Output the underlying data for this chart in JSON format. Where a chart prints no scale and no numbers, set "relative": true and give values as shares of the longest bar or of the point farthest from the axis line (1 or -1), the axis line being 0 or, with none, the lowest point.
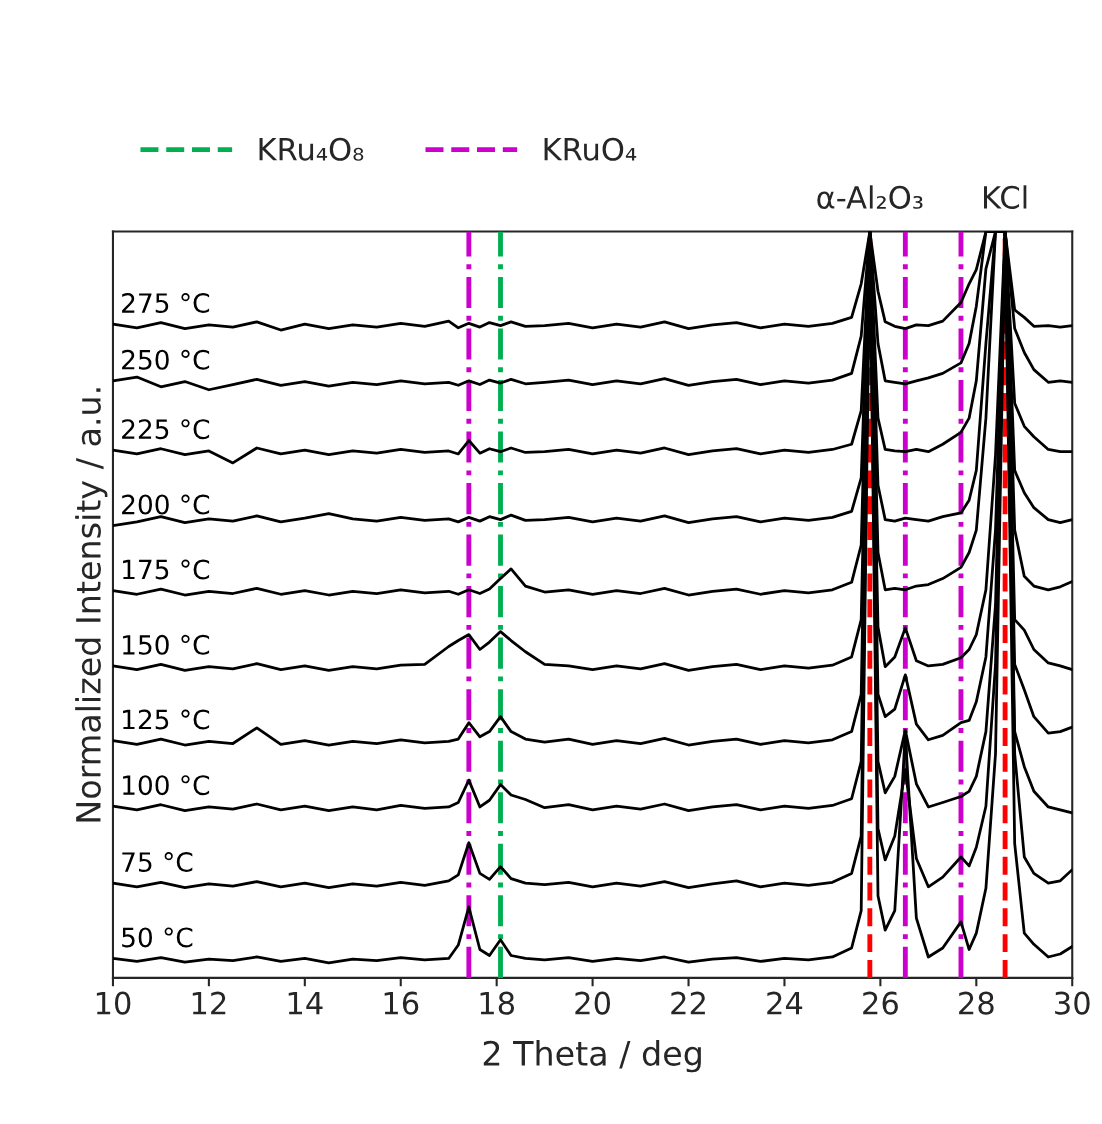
{
  "chart_data": {
    "type": "line",
    "relative": true,
    "xlabel": "2 Theta / deg",
    "ylabel": "Normalized Intensity / a.u.",
    "xlim": [
      10,
      30
    ],
    "xticks": [
      10,
      12,
      14,
      16,
      18,
      20,
      22,
      24,
      26,
      28,
      30
    ],
    "grid": false,
    "legend": "top",
    "marker": "none",
    "line_style": "solid",
    "x": [
      10,
      10.5,
      11,
      11.5,
      12,
      12.5,
      13,
      13.5,
      14,
      14.5,
      15,
      15.5,
      16,
      16.5,
      17,
      17.2,
      17.42,
      17.65,
      17.85,
      18.08,
      18.3,
      18.6,
      19,
      19.5,
      20,
      20.5,
      21,
      21.5,
      22,
      22.5,
      23,
      23.5,
      24,
      24.5,
      25,
      25.4,
      25.6,
      25.78,
      25.95,
      26.1,
      26.3,
      26.52,
      26.75,
      27,
      27.3,
      27.68,
      27.85,
      28.0,
      28.2,
      28.4,
      28.6,
      28.8,
      29.0,
      29.2,
      29.5,
      29.75,
      30
    ],
    "series": [
      {
        "name": "50 °C",
        "color": "#000000",
        "values": [
          0.026,
          0.022,
          0.027,
          0.021,
          0.025,
          0.023,
          0.028,
          0.022,
          0.026,
          0.02,
          0.025,
          0.023,
          0.027,
          0.024,
          0.026,
          0.044,
          0.095,
          0.038,
          0.03,
          0.051,
          0.03,
          0.026,
          0.024,
          0.027,
          0.022,
          0.026,
          0.023,
          0.028,
          0.021,
          0.025,
          0.027,
          0.022,
          0.026,
          0.024,
          0.028,
          0.04,
          0.09,
          1.0,
          0.11,
          0.064,
          0.09,
          0.326,
          0.08,
          0.028,
          0.04,
          0.075,
          0.038,
          0.06,
          0.12,
          0.3,
          1.0,
          0.18,
          0.06,
          0.045,
          0.028,
          0.032,
          0.042
        ]
      },
      {
        "name": "75 °C",
        "color": "#000000",
        "values": [
          0.127,
          0.122,
          0.128,
          0.121,
          0.126,
          0.123,
          0.129,
          0.122,
          0.127,
          0.121,
          0.126,
          0.123,
          0.128,
          0.124,
          0.13,
          0.138,
          0.181,
          0.14,
          0.132,
          0.149,
          0.133,
          0.127,
          0.125,
          0.128,
          0.122,
          0.127,
          0.123,
          0.129,
          0.121,
          0.126,
          0.13,
          0.122,
          0.127,
          0.124,
          0.128,
          0.14,
          0.19,
          1.0,
          0.2,
          0.158,
          0.19,
          0.279,
          0.16,
          0.122,
          0.135,
          0.162,
          0.15,
          0.175,
          0.23,
          0.42,
          1.0,
          0.3,
          0.162,
          0.14,
          0.127,
          0.13,
          0.145
        ]
      },
      {
        "name": "100 °C",
        "color": "#000000",
        "values": [
          0.23,
          0.225,
          0.232,
          0.224,
          0.229,
          0.226,
          0.233,
          0.225,
          0.23,
          0.224,
          0.229,
          0.225,
          0.231,
          0.227,
          0.229,
          0.235,
          0.265,
          0.229,
          0.238,
          0.259,
          0.245,
          0.239,
          0.228,
          0.232,
          0.225,
          0.23,
          0.226,
          0.233,
          0.224,
          0.229,
          0.232,
          0.225,
          0.23,
          0.227,
          0.231,
          0.24,
          0.29,
          1.0,
          0.29,
          0.248,
          0.27,
          0.332,
          0.26,
          0.229,
          0.235,
          0.243,
          0.25,
          0.27,
          0.33,
          0.5,
          1.0,
          0.33,
          0.283,
          0.25,
          0.229,
          0.225,
          0.221
        ]
      },
      {
        "name": "125 °C",
        "color": "#000000",
        "values": [
          0.318,
          0.313,
          0.32,
          0.312,
          0.317,
          0.314,
          0.335,
          0.313,
          0.318,
          0.312,
          0.317,
          0.314,
          0.319,
          0.315,
          0.317,
          0.32,
          0.342,
          0.323,
          0.33,
          0.35,
          0.33,
          0.32,
          0.316,
          0.32,
          0.313,
          0.318,
          0.314,
          0.321,
          0.312,
          0.317,
          0.32,
          0.313,
          0.318,
          0.315,
          0.319,
          0.33,
          0.38,
          1.0,
          0.38,
          0.35,
          0.36,
          0.406,
          0.34,
          0.319,
          0.325,
          0.342,
          0.345,
          0.37,
          0.43,
          0.6,
          1.0,
          0.42,
          0.386,
          0.35,
          0.328,
          0.33,
          0.336
        ]
      },
      {
        "name": "150 °C",
        "color": "#000000",
        "values": [
          0.418,
          0.413,
          0.42,
          0.412,
          0.417,
          0.414,
          0.421,
          0.413,
          0.418,
          0.412,
          0.417,
          0.414,
          0.419,
          0.42,
          0.444,
          0.452,
          0.46,
          0.44,
          0.45,
          0.464,
          0.452,
          0.437,
          0.42,
          0.418,
          0.413,
          0.418,
          0.414,
          0.421,
          0.412,
          0.417,
          0.42,
          0.413,
          0.418,
          0.415,
          0.419,
          0.43,
          0.48,
          1.0,
          0.47,
          0.417,
          0.43,
          0.469,
          0.425,
          0.418,
          0.42,
          0.429,
          0.44,
          0.46,
          0.52,
          0.7,
          1.0,
          0.48,
          0.466,
          0.44,
          0.422,
          0.418,
          0.413
        ]
      },
      {
        "name": "175 °C",
        "color": "#000000",
        "values": [
          0.519,
          0.514,
          0.521,
          0.513,
          0.518,
          0.515,
          0.522,
          0.514,
          0.519,
          0.513,
          0.518,
          0.515,
          0.52,
          0.516,
          0.518,
          0.514,
          0.52,
          0.515,
          0.521,
          0.535,
          0.548,
          0.525,
          0.517,
          0.52,
          0.514,
          0.519,
          0.515,
          0.522,
          0.513,
          0.518,
          0.521,
          0.514,
          0.519,
          0.516,
          0.52,
          0.53,
          0.58,
          1.0,
          0.57,
          0.52,
          0.522,
          0.52,
          0.525,
          0.527,
          0.535,
          0.55,
          0.57,
          0.6,
          0.75,
          1.0,
          1.0,
          0.6,
          0.538,
          0.525,
          0.52,
          0.524,
          0.531
        ]
      },
      {
        "name": "200 °C",
        "color": "#000000",
        "values": [
          0.606,
          0.611,
          0.618,
          0.61,
          0.615,
          0.612,
          0.619,
          0.611,
          0.616,
          0.622,
          0.615,
          0.612,
          0.617,
          0.613,
          0.615,
          0.611,
          0.617,
          0.612,
          0.618,
          0.614,
          0.62,
          0.613,
          0.614,
          0.617,
          0.611,
          0.616,
          0.612,
          0.619,
          0.61,
          0.615,
          0.618,
          0.611,
          0.616,
          0.613,
          0.617,
          0.625,
          0.67,
          1.0,
          0.66,
          0.614,
          0.612,
          0.616,
          0.614,
          0.612,
          0.618,
          0.623,
          0.64,
          0.68,
          0.85,
          1.0,
          1.0,
          0.68,
          0.65,
          0.63,
          0.614,
          0.61,
          0.614
        ]
      },
      {
        "name": "225 °C",
        "color": "#000000",
        "values": [
          0.707,
          0.702,
          0.709,
          0.701,
          0.706,
          0.69,
          0.71,
          0.702,
          0.707,
          0.701,
          0.706,
          0.703,
          0.708,
          0.704,
          0.706,
          0.702,
          0.72,
          0.703,
          0.709,
          0.705,
          0.71,
          0.704,
          0.705,
          0.708,
          0.702,
          0.707,
          0.703,
          0.71,
          0.701,
          0.706,
          0.709,
          0.702,
          0.707,
          0.704,
          0.708,
          0.715,
          0.76,
          1.0,
          0.75,
          0.708,
          0.706,
          0.705,
          0.708,
          0.705,
          0.715,
          0.731,
          0.75,
          0.8,
          0.95,
          1.0,
          1.0,
          0.77,
          0.739,
          0.725,
          0.708,
          0.705,
          0.705
        ]
      },
      {
        "name": "250 °C",
        "color": "#000000",
        "values": [
          0.8,
          0.805,
          0.792,
          0.799,
          0.788,
          0.795,
          0.802,
          0.794,
          0.799,
          0.793,
          0.798,
          0.795,
          0.8,
          0.796,
          0.798,
          0.794,
          0.8,
          0.795,
          0.801,
          0.797,
          0.802,
          0.796,
          0.798,
          0.801,
          0.795,
          0.8,
          0.796,
          0.803,
          0.794,
          0.799,
          0.802,
          0.795,
          0.8,
          0.797,
          0.801,
          0.81,
          0.86,
          1.0,
          0.85,
          0.8,
          0.798,
          0.796,
          0.8,
          0.804,
          0.81,
          0.824,
          0.85,
          0.9,
          1.0,
          1.0,
          1.0,
          0.87,
          0.838,
          0.815,
          0.798,
          0.8,
          0.798
        ]
      },
      {
        "name": "275 °C",
        "color": "#000000",
        "values": [
          0.876,
          0.871,
          0.878,
          0.87,
          0.875,
          0.872,
          0.879,
          0.868,
          0.876,
          0.87,
          0.875,
          0.872,
          0.877,
          0.873,
          0.88,
          0.871,
          0.877,
          0.872,
          0.878,
          0.874,
          0.879,
          0.873,
          0.874,
          0.877,
          0.871,
          0.876,
          0.872,
          0.879,
          0.87,
          0.875,
          0.878,
          0.871,
          0.876,
          0.873,
          0.877,
          0.885,
          0.93,
          1.0,
          0.92,
          0.879,
          0.873,
          0.87,
          0.875,
          0.874,
          0.88,
          0.905,
          0.93,
          0.949,
          1.0,
          1.0,
          1.0,
          0.895,
          0.885,
          0.873,
          0.874,
          0.872,
          0.874
        ]
      }
    ],
    "ref_lines": [
      {
        "axis": "x",
        "value": 18.08,
        "label": "KRu₄O₈",
        "color": "#00b050",
        "line_style": "dashdot"
      },
      {
        "axis": "x",
        "value": 17.42,
        "label": "KRuO₄",
        "color": "#cc00cc",
        "line_style": "dashdot"
      },
      {
        "axis": "x",
        "value": 25.78,
        "label": "α-Al₂O₃",
        "color": "#ff0000",
        "line_style": "dashed"
      },
      {
        "axis": "x",
        "value": 26.52,
        "color": "#cc00cc",
        "line_style": "dashdot"
      },
      {
        "axis": "x",
        "value": 27.68,
        "color": "#cc00cc",
        "line_style": "dashdot"
      },
      {
        "axis": "x",
        "value": 28.6,
        "label": "KCl",
        "color": "#ff0000",
        "line_style": "dashed"
      }
    ]
  }
}
